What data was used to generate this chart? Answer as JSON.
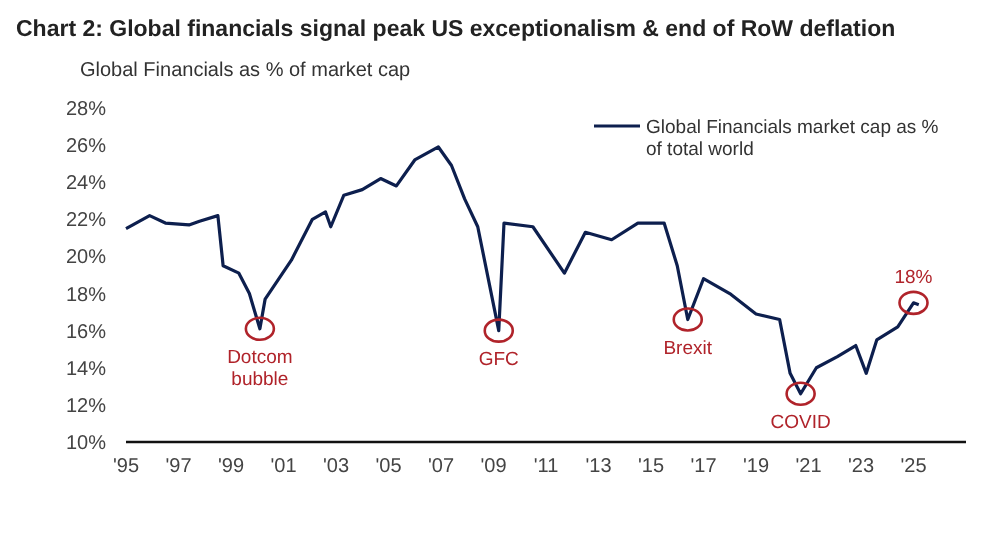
{
  "chart_data": {
    "type": "line",
    "title": "Chart 2: Global financials signal peak US exceptionalism & end of RoW deflation",
    "subtitle": "Global Financials as % of market cap",
    "xlim": [
      1995,
      2027
    ],
    "xticks": [
      {
        "value": 1995,
        "label": "'95"
      },
      {
        "value": 1997,
        "label": "'97"
      },
      {
        "value": 1999,
        "label": "'99"
      },
      {
        "value": 2001,
        "label": "'01"
      },
      {
        "value": 2003,
        "label": "'03"
      },
      {
        "value": 2005,
        "label": "'05"
      },
      {
        "value": 2007,
        "label": "'07"
      },
      {
        "value": 2009,
        "label": "'09"
      },
      {
        "value": 2011,
        "label": "'11"
      },
      {
        "value": 2013,
        "label": "'13"
      },
      {
        "value": 2015,
        "label": "'15"
      },
      {
        "value": 2017,
        "label": "'17"
      },
      {
        "value": 2019,
        "label": "'19"
      },
      {
        "value": 2021,
        "label": "'21"
      },
      {
        "value": 2023,
        "label": "'23"
      },
      {
        "value": 2025,
        "label": "'25"
      }
    ],
    "ylim": [
      10,
      28
    ],
    "yticks": [
      {
        "value": 10,
        "label": "10%"
      },
      {
        "value": 12,
        "label": "12%"
      },
      {
        "value": 14,
        "label": "14%"
      },
      {
        "value": 16,
        "label": "16%"
      },
      {
        "value": 18,
        "label": "18%"
      },
      {
        "value": 20,
        "label": "20%"
      },
      {
        "value": 22,
        "label": "22%"
      },
      {
        "value": 24,
        "label": "24%"
      },
      {
        "value": 26,
        "label": "26%"
      },
      {
        "value": 28,
        "label": "28%"
      }
    ],
    "grid": false,
    "legend": "top right",
    "line_style": "solid",
    "marker": "none",
    "series": [
      {
        "name": "Global Financials market cap as % of total world",
        "color": "#0d1f4e",
        "x": [
          1995.0,
          1995.9,
          1996.5,
          1997.4,
          1997.8,
          1998.5,
          1998.7,
          1999.3,
          1999.7,
          2000.1,
          2000.3,
          2001.3,
          2002.1,
          2002.6,
          2002.8,
          2003.3,
          2004.0,
          2004.7,
          2005.3,
          2006.0,
          2006.9,
          2007.4,
          2007.9,
          2008.4,
          2009.2,
          2009.4,
          2010.5,
          2011.7,
          2012.5,
          2013.5,
          2014.5,
          2015.5,
          2016.0,
          2016.4,
          2017.0,
          2018.0,
          2019.0,
          2019.9,
          2020.3,
          2020.7,
          2021.3,
          2022.1,
          2022.8,
          2023.2,
          2023.6,
          2024.4,
          2025.0,
          2025.2
        ],
        "values": [
          21.5,
          22.2,
          21.8,
          21.7,
          21.9,
          22.2,
          19.5,
          19.1,
          18.0,
          16.1,
          17.7,
          19.8,
          22.0,
          22.4,
          21.6,
          23.3,
          23.6,
          24.2,
          23.8,
          25.2,
          25.9,
          24.9,
          23.1,
          21.6,
          16.0,
          21.8,
          21.6,
          19.1,
          21.3,
          20.9,
          21.8,
          21.8,
          19.5,
          16.6,
          18.8,
          18.0,
          16.9,
          16.6,
          13.7,
          12.6,
          14.0,
          14.6,
          15.2,
          13.7,
          15.5,
          16.2,
          17.5,
          17.4
        ]
      }
    ],
    "annotations": [
      {
        "text": "Dotcom bubble",
        "x": 2000.1,
        "y": 16.1
      },
      {
        "text": "GFC",
        "x": 2009.2,
        "y": 16.0
      },
      {
        "text": "Brexit",
        "x": 2016.4,
        "y": 16.6
      },
      {
        "text": "COVID",
        "x": 2020.7,
        "y": 12.6
      },
      {
        "text": "18%",
        "x": 2025.0,
        "y": 17.5
      }
    ]
  }
}
